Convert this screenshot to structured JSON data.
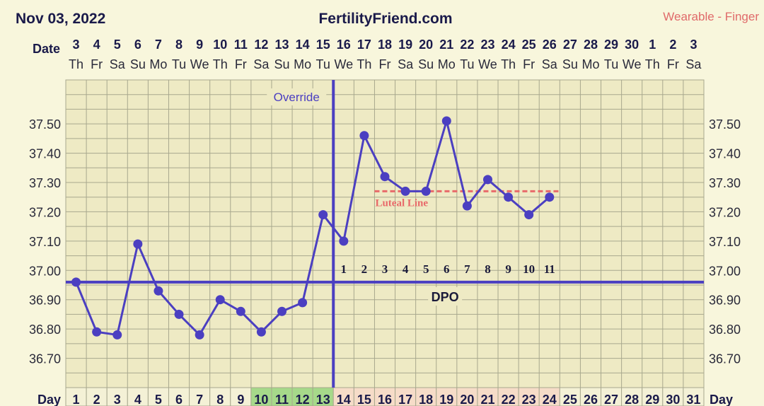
{
  "header": {
    "date": "Nov 03, 2022",
    "site": "FertilityFriend.com",
    "method": "Wearable - Finger"
  },
  "labels": {
    "date_label": "Date",
    "day_label": "Day",
    "override": "Override",
    "luteal": "Luteal Line",
    "dpo": "DPO"
  },
  "colors": {
    "background": "#f8f6dc",
    "plot_bg": "#eeeac4",
    "grid": "#a8a88e",
    "line": "#4b3fc1",
    "luteal": "#e86a6a",
    "fertile_cell": "#a6d98a",
    "post_ov_cell": "#f6dcc8"
  },
  "chart_data": {
    "type": "line",
    "ylim": [
      36.6,
      37.65
    ],
    "y_ticks": [
      "37.50",
      "37.40",
      "37.30",
      "37.20",
      "37.10",
      "37.00",
      "36.90",
      "36.80",
      "36.70"
    ],
    "dates": [
      "3",
      "4",
      "5",
      "6",
      "7",
      "8",
      "9",
      "10",
      "11",
      "12",
      "13",
      "14",
      "15",
      "16",
      "17",
      "18",
      "19",
      "20",
      "21",
      "22",
      "23",
      "24",
      "25",
      "26",
      "27",
      "28",
      "29",
      "30",
      "1",
      "2",
      "3"
    ],
    "weekdays": [
      "Th",
      "Fr",
      "Sa",
      "Su",
      "Mo",
      "Tu",
      "We",
      "Th",
      "Fr",
      "Sa",
      "Su",
      "Mo",
      "Tu",
      "We",
      "Th",
      "Fr",
      "Sa",
      "Su",
      "Mo",
      "Tu",
      "We",
      "Th",
      "Fr",
      "Sa",
      "Su",
      "Mo",
      "Tu",
      "We",
      "Th",
      "Fr",
      "Sa"
    ],
    "cycle_days": [
      1,
      2,
      3,
      4,
      5,
      6,
      7,
      8,
      9,
      10,
      11,
      12,
      13,
      14,
      15,
      16,
      17,
      18,
      19,
      20,
      21,
      22,
      23,
      24,
      25,
      26,
      27,
      28,
      29,
      30,
      31
    ],
    "temps": [
      36.96,
      36.79,
      36.78,
      37.09,
      36.93,
      36.85,
      36.78,
      36.9,
      36.86,
      36.79,
      36.86,
      36.89,
      37.19,
      37.1,
      37.46,
      37.32,
      37.27,
      37.27,
      37.51,
      37.22,
      37.31,
      37.25,
      37.19,
      37.25
    ],
    "coverline": 36.96,
    "ovulation_day": 13,
    "luteal_line": {
      "value": 37.27,
      "from_day": 16,
      "to_day": 24
    },
    "dpo": [
      1,
      2,
      3,
      4,
      5,
      6,
      7,
      8,
      9,
      10,
      11
    ],
    "dpo_start_day": 14,
    "fertile_days": [
      10,
      11,
      12,
      13
    ],
    "post_ov_shaded_days": [
      14,
      15,
      16,
      17,
      18,
      19,
      20,
      21,
      22,
      23,
      24
    ]
  }
}
